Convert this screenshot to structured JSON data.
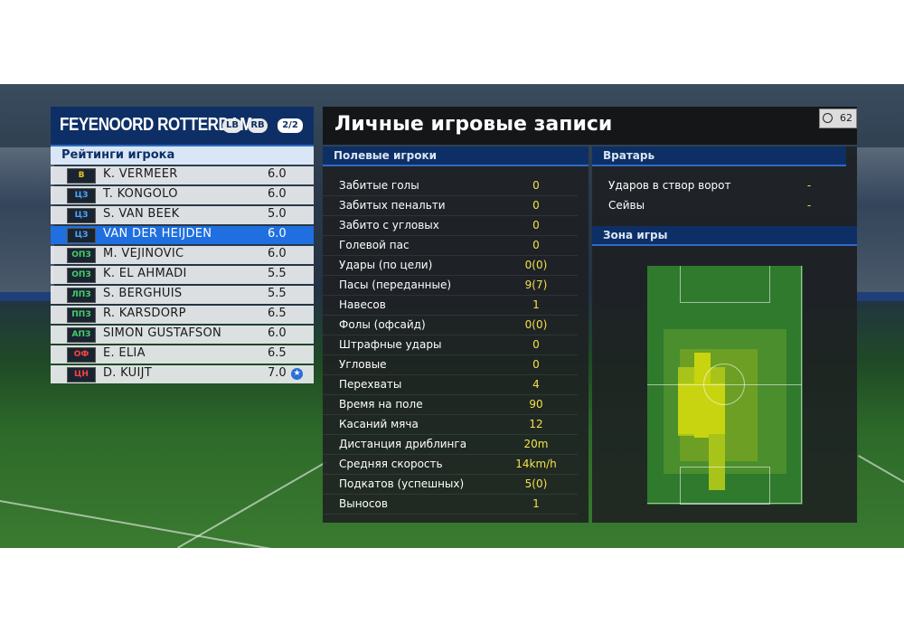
{
  "team": {
    "name": "FEYENOORD ROTTERDAM",
    "lb_badge": "LB",
    "rb_badge": "RB",
    "page": "2/2"
  },
  "ratings": {
    "title": "Рейтинги игрока",
    "players": [
      {
        "pos": "В",
        "pos_color": "#f0c020",
        "name": "K. VERMEER",
        "rating": "6.0"
      },
      {
        "pos": "ЦЗ",
        "pos_color": "#4aa8ff",
        "name": "T. KONGOLO",
        "rating": "6.0"
      },
      {
        "pos": "ЦЗ",
        "pos_color": "#4aa8ff",
        "name": "S. VAN BEEK",
        "rating": "5.0"
      },
      {
        "pos": "ЦЗ",
        "pos_color": "#4aa8ff",
        "name": "VAN DER HEIJDEN",
        "rating": "6.0"
      },
      {
        "pos": "ОПЗ",
        "pos_color": "#44d06a",
        "name": "M. VEJINOVIC",
        "rating": "6.0"
      },
      {
        "pos": "ОПЗ",
        "pos_color": "#44d06a",
        "name": "K. EL AHMADI",
        "rating": "5.5"
      },
      {
        "pos": "ЛПЗ",
        "pos_color": "#44d06a",
        "name": "S. BERGHUIS",
        "rating": "5.5"
      },
      {
        "pos": "ППЗ",
        "pos_color": "#44d06a",
        "name": "R. KARSDORP",
        "rating": "6.5"
      },
      {
        "pos": "АПЗ",
        "pos_color": "#44d06a",
        "name": "SIMON GUSTAFSON",
        "rating": "6.0"
      },
      {
        "pos": "ОФ",
        "pos_color": "#ff4040",
        "name": "E. ELIA",
        "rating": "6.5"
      },
      {
        "pos": "ЦН",
        "pos_color": "#ff4040",
        "name": "D. KUIJT",
        "rating": "7.0"
      }
    ],
    "selected_index": 3,
    "star_index": 10
  },
  "records": {
    "title": "Личные игровые записи",
    "timer": "62"
  },
  "field_players": {
    "title": "Полевые игроки",
    "stats": [
      {
        "label": "Забитые голы",
        "value": "0"
      },
      {
        "label": "Забитых пенальти",
        "value": "0"
      },
      {
        "label": "Забито с угловых",
        "value": "0"
      },
      {
        "label": "Голевой пас",
        "value": "0"
      },
      {
        "label": "Удары (по цели)",
        "value": "0(0)"
      },
      {
        "label": "Пасы (переданные)",
        "value": "9(7)"
      },
      {
        "label": "Навесов",
        "value": "1"
      },
      {
        "label": "Фолы (офсайд)",
        "value": "0(0)"
      },
      {
        "label": "Штрафные удары",
        "value": "0"
      },
      {
        "label": "Угловые",
        "value": "0"
      },
      {
        "label": "Перехваты",
        "value": "4"
      },
      {
        "label": "Время на поле",
        "value": "90"
      },
      {
        "label": "Касаний мяча",
        "value": "12"
      },
      {
        "label": "Дистанция дриблинга",
        "value": "20m"
      },
      {
        "label": "Средняя скорость",
        "value": "14km/h"
      },
      {
        "label": "Подкатов (успешных)",
        "value": "5(0)"
      },
      {
        "label": "Выносов",
        "value": "1"
      }
    ]
  },
  "goalkeeper": {
    "title": "Вратарь",
    "stats": [
      {
        "label": "Ударов в створ ворот",
        "value": "-"
      },
      {
        "label": "Сейвы",
        "value": "-"
      }
    ]
  },
  "zone": {
    "title": "Зона игры"
  }
}
